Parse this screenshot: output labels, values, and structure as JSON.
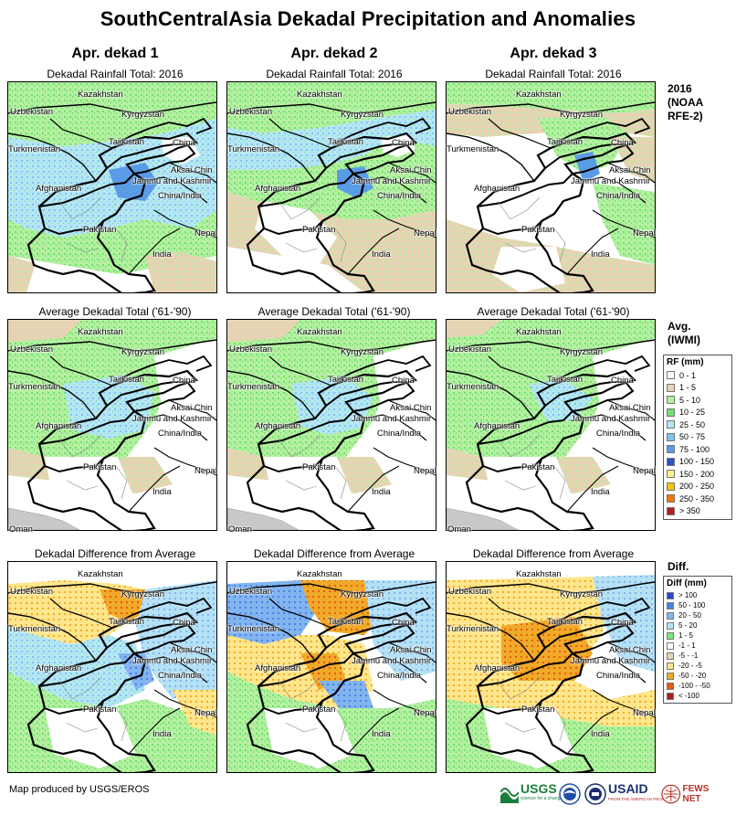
{
  "title": "SouthCentralAsia Dekadal Precipitation and Anomalies",
  "columns": [
    "Apr. dekad 1",
    "Apr. dekad 2",
    "Apr. dekad 3"
  ],
  "row_titles": {
    "rainfall": "Dekadal Rainfall Total: 2016",
    "average": "Average Dekadal Total ('61-'90)",
    "difference": "Dekadal Difference from Average"
  },
  "map_labels": {
    "kazakhstan": "Kazakhstan",
    "uzbekistan": "Uzbekistan",
    "kyrgyzstan": "Kyrgyzstan",
    "tajikistan": "Tajikistan",
    "turkmenistan": "Turkmenistan",
    "china": "China",
    "aksai_chin": "Aksai Chin",
    "jammu": "Jammu and Kashmir",
    "china_india": "China/India",
    "afghanistan": "Afghanistan",
    "pakistan": "Pakistan",
    "nepal": "Nepal",
    "india": "India",
    "oman": "Oman"
  },
  "side": {
    "rainfall_title": [
      "2016",
      "(NOAA",
      "RFE-2)"
    ],
    "average_title": [
      "Avg.",
      "(IWMI)"
    ],
    "difference_title": "Diff."
  },
  "legend_rf": {
    "title": "RF  (mm)",
    "items": [
      {
        "label": "0 - 1",
        "color": "#ffffff"
      },
      {
        "label": "1 - 5",
        "color": "#e6d3b3"
      },
      {
        "label": "5 - 10",
        "color": "#b4f0a0"
      },
      {
        "label": "10 - 25",
        "color": "#6fe06f"
      },
      {
        "label": "25 - 50",
        "color": "#b4e6f5"
      },
      {
        "label": "50 - 75",
        "color": "#82c3f0"
      },
      {
        "label": "75 - 100",
        "color": "#5a9be6"
      },
      {
        "label": "100 - 150",
        "color": "#2850c8"
      },
      {
        "label": "150 - 200",
        "color": "#fff08c"
      },
      {
        "label": "200 - 250",
        "color": "#f0c800"
      },
      {
        "label": "250 - 350",
        "color": "#f07800"
      },
      {
        "label": "> 350",
        "color": "#b41e1e"
      }
    ]
  },
  "legend_diff": {
    "title": "Diff (mm)",
    "items": [
      {
        "label": "> 100",
        "color": "#2846d2"
      },
      {
        "label": "50 - 100",
        "color": "#4682e6"
      },
      {
        "label": "20 - 50",
        "color": "#82b4f0"
      },
      {
        "label": "5 - 20",
        "color": "#b4e1f5"
      },
      {
        "label": "1 - 5",
        "color": "#78e678"
      },
      {
        "label": "-1 - 1",
        "color": "#ffffff"
      },
      {
        "label": "-5 - -1",
        "color": "#e6d3b3"
      },
      {
        "label": "-20 - -5",
        "color": "#ffe68c"
      },
      {
        "label": "-50 - -20",
        "color": "#f0aa28"
      },
      {
        "label": "-100 - -50",
        "color": "#e65a14"
      },
      {
        "label": "< -100",
        "color": "#aa1e1e"
      }
    ]
  },
  "footer": "Map produced by USGS/EROS",
  "logos": {
    "usgs": "USGS",
    "usgs_tag": "science for a changing world",
    "usaid": "USAID",
    "usaid_tag": "FROM THE AMERICAN PEOPLE",
    "fews": "FEWS NET"
  }
}
